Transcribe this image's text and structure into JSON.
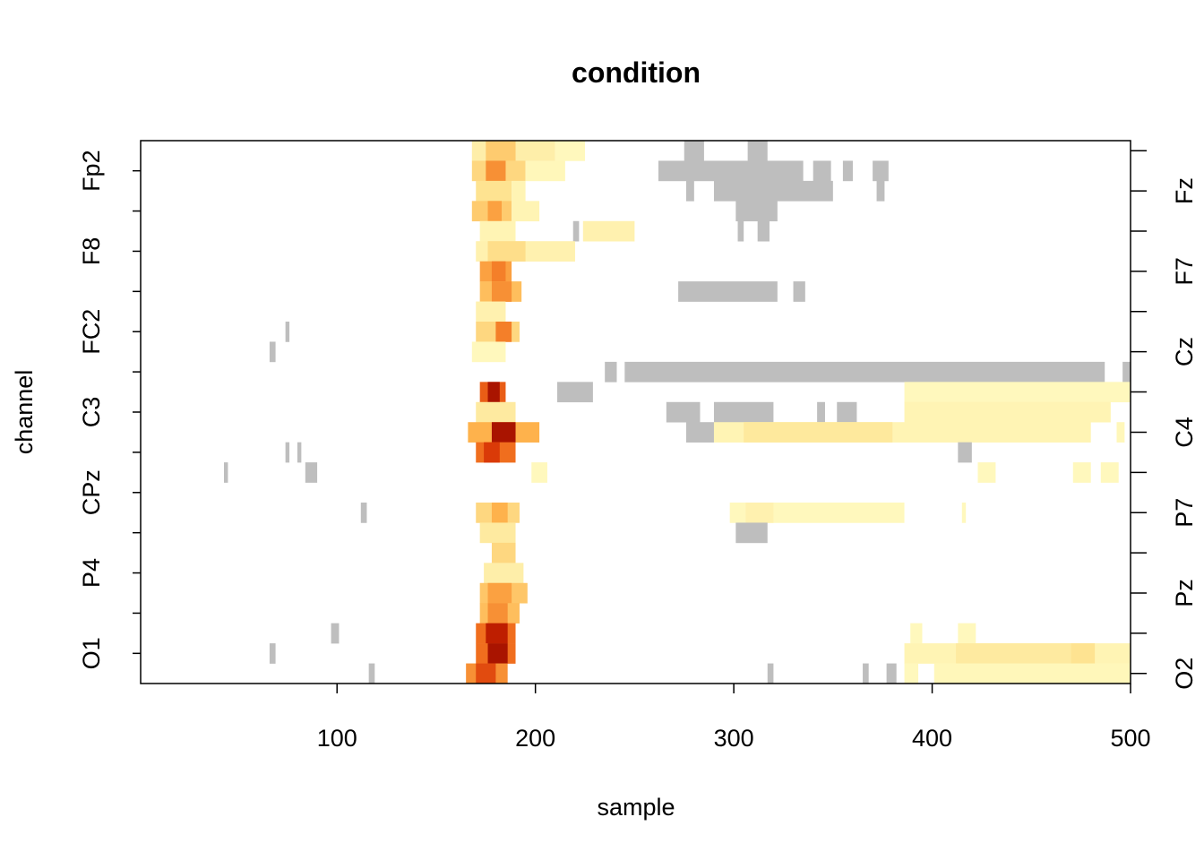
{
  "chart_data": {
    "type": "heatmap",
    "title": "condition",
    "xlabel": "sample",
    "ylabel": "channel",
    "xlim": [
      1,
      500
    ],
    "x_ticks": [
      "100",
      "200",
      "300",
      "400",
      "500"
    ],
    "x_tick_values": [
      100,
      200,
      300,
      400,
      500
    ],
    "y_left_labels": [
      "Fp2",
      "F8",
      "FC2",
      "C3",
      "CPz",
      "P4",
      "O1"
    ],
    "y_right_labels": [
      "Fz",
      "F7",
      "Cz",
      "C4",
      "P7",
      "Pz",
      "O2"
    ],
    "channel_count": 27,
    "colors": {
      "not_significant": "#bebebe",
      "scale_low": "#ffffcc",
      "scale_high": "#800000",
      "frame": "#000000"
    },
    "cells": [
      {
        "row": 0,
        "x0": 168,
        "x1": 210,
        "v": 0.12
      },
      {
        "row": 0,
        "x0": 175,
        "x1": 190,
        "v": 0.3
      },
      {
        "row": 0,
        "x0": 210,
        "x1": 225,
        "v": 0.05
      },
      {
        "row": 0,
        "x0": 275,
        "x1": 285,
        "v": -1
      },
      {
        "row": 0,
        "x0": 307,
        "x1": 317,
        "v": -1
      },
      {
        "row": 1,
        "x0": 168,
        "x1": 195,
        "v": 0.25
      },
      {
        "row": 1,
        "x0": 175,
        "x1": 185,
        "v": 0.5
      },
      {
        "row": 1,
        "x0": 195,
        "x1": 215,
        "v": 0.06
      },
      {
        "row": 1,
        "x0": 262,
        "x1": 335,
        "v": -1
      },
      {
        "row": 1,
        "x0": 340,
        "x1": 349,
        "v": -1
      },
      {
        "row": 1,
        "x0": 355,
        "x1": 360,
        "v": -1
      },
      {
        "row": 1,
        "x0": 370,
        "x1": 378,
        "v": -1
      },
      {
        "row": 2,
        "x0": 170,
        "x1": 188,
        "v": 0.2
      },
      {
        "row": 2,
        "x0": 188,
        "x1": 195,
        "v": 0.08
      },
      {
        "row": 2,
        "x0": 276,
        "x1": 280,
        "v": -1
      },
      {
        "row": 2,
        "x0": 290,
        "x1": 350,
        "v": -1
      },
      {
        "row": 2,
        "x0": 372,
        "x1": 376,
        "v": -1
      },
      {
        "row": 3,
        "x0": 168,
        "x1": 188,
        "v": 0.3
      },
      {
        "row": 3,
        "x0": 176,
        "x1": 183,
        "v": 0.45
      },
      {
        "row": 3,
        "x0": 188,
        "x1": 202,
        "v": 0.08
      },
      {
        "row": 3,
        "x0": 301,
        "x1": 322,
        "v": -1
      },
      {
        "row": 4,
        "x0": 172,
        "x1": 190,
        "v": 0.08
      },
      {
        "row": 4,
        "x0": 219,
        "x1": 222,
        "v": -1
      },
      {
        "row": 4,
        "x0": 224,
        "x1": 250,
        "v": 0.1
      },
      {
        "row": 4,
        "x0": 302,
        "x1": 305,
        "v": -1
      },
      {
        "row": 4,
        "x0": 312,
        "x1": 318,
        "v": -1
      },
      {
        "row": 5,
        "x0": 170,
        "x1": 220,
        "v": 0.1
      },
      {
        "row": 5,
        "x0": 176,
        "x1": 195,
        "v": 0.22
      },
      {
        "row": 6,
        "x0": 172,
        "x1": 188,
        "v": 0.45
      },
      {
        "row": 6,
        "x0": 178,
        "x1": 185,
        "v": 0.55
      },
      {
        "row": 7,
        "x0": 172,
        "x1": 193,
        "v": 0.35
      },
      {
        "row": 7,
        "x0": 178,
        "x1": 188,
        "v": 0.5
      },
      {
        "row": 7,
        "x0": 272,
        "x1": 322,
        "v": -1
      },
      {
        "row": 7,
        "x0": 330,
        "x1": 336,
        "v": -1
      },
      {
        "row": 8,
        "x0": 170,
        "x1": 185,
        "v": 0.1
      },
      {
        "row": 9,
        "x0": 170,
        "x1": 192,
        "v": 0.25
      },
      {
        "row": 9,
        "x0": 180,
        "x1": 188,
        "v": 0.55
      },
      {
        "row": 9,
        "x0": 74,
        "x1": 76,
        "v": -1
      },
      {
        "row": 10,
        "x0": 168,
        "x1": 185,
        "v": 0.05
      },
      {
        "row": 10,
        "x0": 66,
        "x1": 69,
        "v": -1
      },
      {
        "row": 11,
        "x0": 235,
        "x1": 241,
        "v": -1
      },
      {
        "row": 11,
        "x0": 245,
        "x1": 487,
        "v": -1
      },
      {
        "row": 11,
        "x0": 496,
        "x1": 500,
        "v": -1
      },
      {
        "row": 12,
        "x0": 172,
        "x1": 185,
        "v": 0.65
      },
      {
        "row": 12,
        "x0": 176,
        "x1": 182,
        "v": 0.9
      },
      {
        "row": 12,
        "x0": 211,
        "x1": 229,
        "v": -1
      },
      {
        "row": 12,
        "x0": 386,
        "x1": 500,
        "v": 0.05
      },
      {
        "row": 13,
        "x0": 170,
        "x1": 190,
        "v": 0.15
      },
      {
        "row": 13,
        "x0": 266,
        "x1": 283,
        "v": -1
      },
      {
        "row": 13,
        "x0": 290,
        "x1": 320,
        "v": -1
      },
      {
        "row": 13,
        "x0": 342,
        "x1": 346,
        "v": -1
      },
      {
        "row": 13,
        "x0": 352,
        "x1": 362,
        "v": -1
      },
      {
        "row": 13,
        "x0": 386,
        "x1": 490,
        "v": 0.08
      },
      {
        "row": 14,
        "x0": 166,
        "x1": 202,
        "v": 0.4
      },
      {
        "row": 14,
        "x0": 178,
        "x1": 190,
        "v": 0.9
      },
      {
        "row": 14,
        "x0": 276,
        "x1": 290,
        "v": -1
      },
      {
        "row": 14,
        "x0": 290,
        "x1": 480,
        "v": 0.08
      },
      {
        "row": 14,
        "x0": 305,
        "x1": 380,
        "v": 0.16
      },
      {
        "row": 14,
        "x0": 493,
        "x1": 497,
        "v": 0.06
      },
      {
        "row": 15,
        "x0": 170,
        "x1": 190,
        "v": 0.6
      },
      {
        "row": 15,
        "x0": 174,
        "x1": 182,
        "v": 0.75
      },
      {
        "row": 15,
        "x0": 74,
        "x1": 76,
        "v": -1
      },
      {
        "row": 15,
        "x0": 80,
        "x1": 82,
        "v": -1
      },
      {
        "row": 15,
        "x0": 413,
        "x1": 420,
        "v": -1
      },
      {
        "row": 16,
        "x0": 43,
        "x1": 45,
        "v": -1
      },
      {
        "row": 16,
        "x0": 84,
        "x1": 90,
        "v": -1
      },
      {
        "row": 16,
        "x0": 198,
        "x1": 206,
        "v": 0.05
      },
      {
        "row": 16,
        "x0": 423,
        "x1": 432,
        "v": 0.05
      },
      {
        "row": 16,
        "x0": 471,
        "x1": 480,
        "v": 0.05
      },
      {
        "row": 16,
        "x0": 485,
        "x1": 494,
        "v": 0.05
      },
      {
        "row": 18,
        "x0": 170,
        "x1": 192,
        "v": 0.25
      },
      {
        "row": 18,
        "x0": 178,
        "x1": 186,
        "v": 0.4
      },
      {
        "row": 18,
        "x0": 112,
        "x1": 115,
        "v": -1
      },
      {
        "row": 18,
        "x0": 298,
        "x1": 386,
        "v": 0.05
      },
      {
        "row": 18,
        "x0": 306,
        "x1": 320,
        "v": 0.1
      },
      {
        "row": 18,
        "x0": 415,
        "x1": 417,
        "v": 0.05
      },
      {
        "row": 19,
        "x0": 172,
        "x1": 190,
        "v": 0.15
      },
      {
        "row": 19,
        "x0": 301,
        "x1": 317,
        "v": -1
      },
      {
        "row": 20,
        "x0": 178,
        "x1": 190,
        "v": 0.25
      },
      {
        "row": 21,
        "x0": 174,
        "x1": 194,
        "v": 0.12
      },
      {
        "row": 22,
        "x0": 172,
        "x1": 196,
        "v": 0.32
      },
      {
        "row": 22,
        "x0": 176,
        "x1": 188,
        "v": 0.45
      },
      {
        "row": 23,
        "x0": 172,
        "x1": 192,
        "v": 0.35
      },
      {
        "row": 23,
        "x0": 176,
        "x1": 186,
        "v": 0.5
      },
      {
        "row": 24,
        "x0": 170,
        "x1": 190,
        "v": 0.6
      },
      {
        "row": 24,
        "x0": 175,
        "x1": 186,
        "v": 0.85
      },
      {
        "row": 24,
        "x0": 97,
        "x1": 101,
        "v": -1
      },
      {
        "row": 24,
        "x0": 389,
        "x1": 395,
        "v": 0.05
      },
      {
        "row": 24,
        "x0": 413,
        "x1": 422,
        "v": 0.05
      },
      {
        "row": 25,
        "x0": 170,
        "x1": 190,
        "v": 0.6
      },
      {
        "row": 25,
        "x0": 176,
        "x1": 186,
        "v": 0.9
      },
      {
        "row": 25,
        "x0": 66,
        "x1": 69,
        "v": -1
      },
      {
        "row": 25,
        "x0": 386,
        "x1": 500,
        "v": 0.08
      },
      {
        "row": 25,
        "x0": 412,
        "x1": 470,
        "v": 0.15
      },
      {
        "row": 25,
        "x0": 470,
        "x1": 482,
        "v": 0.2
      },
      {
        "row": 26,
        "x0": 165,
        "x1": 186,
        "v": 0.5
      },
      {
        "row": 26,
        "x0": 170,
        "x1": 180,
        "v": 0.7
      },
      {
        "row": 26,
        "x0": 116,
        "x1": 119,
        "v": -1
      },
      {
        "row": 26,
        "x0": 317,
        "x1": 320,
        "v": -1
      },
      {
        "row": 26,
        "x0": 365,
        "x1": 368,
        "v": -1
      },
      {
        "row": 26,
        "x0": 377,
        "x1": 382,
        "v": -1
      },
      {
        "row": 26,
        "x0": 386,
        "x1": 393,
        "v": 0.05
      },
      {
        "row": 26,
        "x0": 401,
        "x1": 500,
        "v": 0.06
      }
    ]
  }
}
